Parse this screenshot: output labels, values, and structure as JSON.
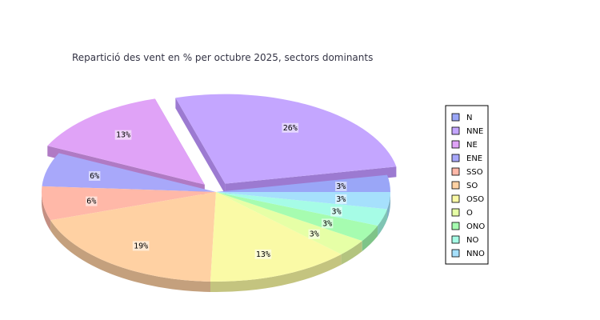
{
  "chart_data": {
    "type": "pie",
    "title": "Repartició des vent en % per octubre 2025, sectors dominants",
    "categories": [
      "N",
      "NNE",
      "NE",
      "ENE",
      "SSO",
      "SO",
      "OSO",
      "O",
      "ONO",
      "NO",
      "NNO"
    ],
    "values": [
      3,
      26,
      13,
      6,
      6,
      19,
      13,
      3,
      3,
      3,
      3
    ],
    "labels": [
      "3%",
      "26%",
      "13%",
      "6%",
      "6%",
      "19%",
      "13%",
      "3%",
      "3%",
      "3%",
      "3%"
    ],
    "exploded": [
      "NNE",
      "NE"
    ],
    "legend_position": "right",
    "colors": [
      "#9aa6f7",
      "#c4a6ff",
      "#e0a3f7",
      "#a8a8fa",
      "#ffb8a8",
      "#ffd1a3",
      "#fafaa6",
      "#e6ffa6",
      "#a6fcb0",
      "#a6fce6",
      "#a6e0fc"
    ],
    "side_colors": [
      "#7a84c4",
      "#9c7ad1",
      "#b07ac4",
      "#8585c7",
      "#c48f82",
      "#c4a07d",
      "#c4c47f",
      "#b3c47f",
      "#7fc488",
      "#7fc4b3",
      "#7fb0c4"
    ]
  }
}
